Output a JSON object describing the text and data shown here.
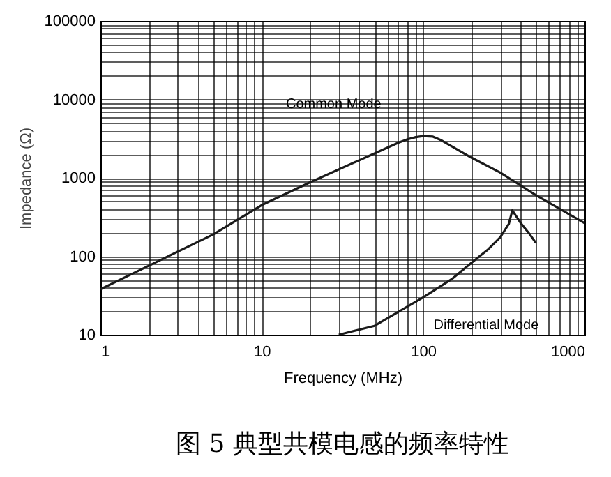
{
  "chart_data": {
    "type": "line",
    "xlabel": "Frequency (MHz)",
    "ylabel": "Impedance (Ω)",
    "log": "xy",
    "grid": true,
    "xlim": [
      1,
      1000
    ],
    "ylim": [
      10,
      100000
    ],
    "xticks": [
      1,
      10,
      100,
      1000
    ],
    "yticks": [
      10,
      100,
      1000,
      10000,
      100000
    ],
    "annotations": [
      "图 5 典型共模电感的频率特性"
    ],
    "series": [
      {
        "name": "Common Mode",
        "color": "#1a1a1a",
        "x": [
          1,
          2,
          5,
          10,
          20,
          50,
          70,
          80,
          90,
          100,
          115,
          130,
          200,
          300,
          500,
          1000
        ],
        "values": [
          38,
          76,
          190,
          450,
          880,
          2050,
          2800,
          3100,
          3300,
          3400,
          3350,
          3000,
          1800,
          1170,
          600,
          265
        ]
      },
      {
        "name": "Differential Mode",
        "color": "#1a1a1a",
        "x": [
          30,
          50,
          100,
          150,
          200,
          250,
          300,
          340,
          357,
          400,
          450,
          500
        ],
        "values": [
          10,
          13,
          30,
          51,
          83,
          120,
          174,
          260,
          385,
          270,
          200,
          148
        ]
      }
    ]
  }
}
